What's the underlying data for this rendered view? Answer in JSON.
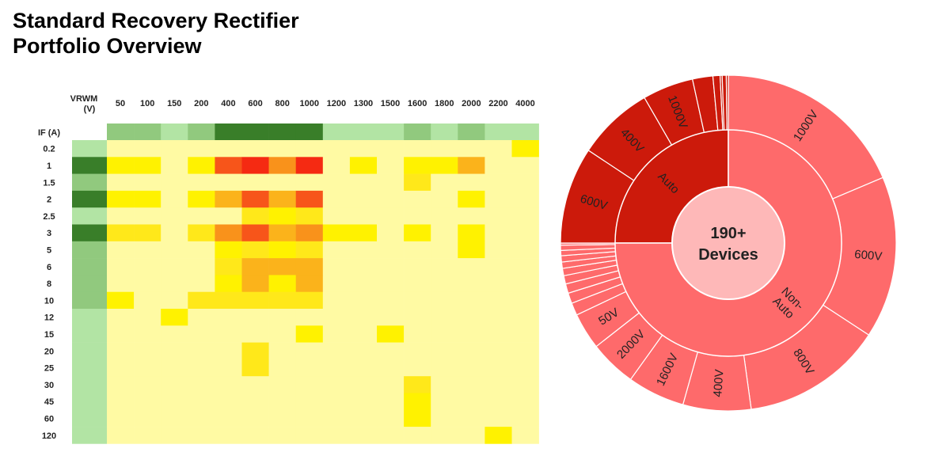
{
  "title": {
    "line1": "Standard Recovery Rectifier",
    "line2": "Portfolio Overview"
  },
  "chart_data": [
    {
      "type": "heatmap",
      "corner_label_line1": "VRWM",
      "corner_label_line2": "(V)",
      "row_header_label": "IF (A)",
      "count_column_label": "#",
      "columns": [
        "50",
        "100",
        "150",
        "200",
        "400",
        "600",
        "800",
        "1000",
        "1200",
        "1300",
        "1500",
        "1600",
        "1800",
        "2000",
        "2200",
        "4000"
      ],
      "rows": [
        "0.2",
        "1",
        "1.5",
        "2",
        "2.5",
        "3",
        "5",
        "6",
        "8",
        "10",
        "12",
        "15",
        "20",
        "25",
        "30",
        "45",
        "60",
        "120"
      ],
      "column_count_levels": [
        2,
        2,
        1,
        2,
        4,
        4,
        4,
        4,
        1,
        1,
        1,
        2,
        1,
        2,
        1,
        1
      ],
      "row_count_levels": [
        1,
        4,
        2,
        4,
        1,
        4,
        2,
        2,
        2,
        2,
        1,
        1,
        1,
        1,
        1,
        1,
        1,
        1
      ],
      "values": [
        [
          0,
          0,
          0,
          0,
          0,
          0,
          0,
          0,
          0,
          0,
          0,
          0,
          0,
          0,
          0,
          2
        ],
        [
          2,
          2,
          0,
          2,
          5,
          6,
          4,
          6,
          0,
          2,
          0,
          2,
          2,
          3,
          0,
          0
        ],
        [
          0,
          0,
          0,
          0,
          0,
          0,
          0,
          0,
          0,
          0,
          0,
          1,
          0,
          0,
          0,
          0
        ],
        [
          2,
          2,
          0,
          2,
          3,
          5,
          3,
          5,
          0,
          0,
          0,
          0,
          0,
          2,
          0,
          0
        ],
        [
          0,
          0,
          0,
          0,
          0,
          1,
          2,
          1,
          0,
          0,
          0,
          0,
          0,
          0,
          0,
          0
        ],
        [
          1,
          1,
          0,
          1,
          4,
          5,
          3,
          4,
          2,
          2,
          0,
          2,
          0,
          2,
          0,
          0
        ],
        [
          0,
          0,
          0,
          0,
          2,
          1,
          2,
          1,
          0,
          0,
          0,
          0,
          0,
          2,
          0,
          0
        ],
        [
          0,
          0,
          0,
          0,
          1,
          3,
          3,
          3,
          0,
          0,
          0,
          0,
          0,
          0,
          0,
          0
        ],
        [
          0,
          0,
          0,
          0,
          2,
          3,
          2,
          3,
          0,
          0,
          0,
          0,
          0,
          0,
          0,
          0
        ],
        [
          2,
          0,
          0,
          1,
          1,
          1,
          1,
          1,
          0,
          0,
          0,
          0,
          0,
          0,
          0,
          0
        ],
        [
          0,
          0,
          2,
          0,
          0,
          0,
          0,
          0,
          0,
          0,
          0,
          0,
          0,
          0,
          0,
          0
        ],
        [
          0,
          0,
          0,
          0,
          0,
          0,
          0,
          2,
          0,
          0,
          2,
          0,
          0,
          0,
          0,
          0
        ],
        [
          0,
          0,
          0,
          0,
          0,
          1,
          0,
          0,
          0,
          0,
          0,
          0,
          0,
          0,
          0,
          0
        ],
        [
          0,
          0,
          0,
          0,
          0,
          1,
          0,
          0,
          0,
          0,
          0,
          0,
          0,
          0,
          0,
          0
        ],
        [
          0,
          0,
          0,
          0,
          0,
          0,
          0,
          0,
          0,
          0,
          0,
          1,
          0,
          0,
          0,
          0
        ],
        [
          0,
          0,
          0,
          0,
          0,
          0,
          0,
          0,
          0,
          0,
          0,
          2,
          0,
          0,
          0,
          0
        ],
        [
          0,
          0,
          0,
          0,
          0,
          0,
          0,
          0,
          0,
          0,
          0,
          2,
          0,
          0,
          0,
          0
        ],
        [
          0,
          0,
          0,
          0,
          0,
          0,
          0,
          0,
          0,
          0,
          0,
          0,
          0,
          0,
          2,
          0
        ]
      ],
      "value_colors": [
        "#fffaa3",
        "#ffe81a",
        "#fff200",
        "#fbb31b",
        "#f9921b",
        "#f7551a",
        "#f52a12"
      ],
      "count_colors": [
        "#ffffff",
        "#b2e4a4",
        "#91c97e",
        "#6ab25a",
        "#397e29"
      ]
    },
    {
      "type": "pie",
      "subtype": "sunburst",
      "center_label_line1": "190+",
      "center_label_line2": "Devices",
      "colors": {
        "auto": "#cc1a0b",
        "non_auto": "#fe6a6b",
        "center": "#feb8b8",
        "border": "#ffffff"
      },
      "inner": [
        {
          "label": "Auto",
          "value": 25,
          "group": "auto"
        },
        {
          "label": "Non-Auto",
          "value": 75,
          "group": "non_auto"
        }
      ],
      "outer": [
        {
          "label": "1000V",
          "value": 18.5,
          "group": "non_auto"
        },
        {
          "label": "600V",
          "value": 15.5,
          "group": "non_auto"
        },
        {
          "label": "800V",
          "value": 13.5,
          "group": "non_auto"
        },
        {
          "label": "400V",
          "value": 6.5,
          "group": "non_auto"
        },
        {
          "label": "1600V",
          "value": 5.5,
          "group": "non_auto"
        },
        {
          "label": "2000V",
          "value": 4.5,
          "group": "non_auto"
        },
        {
          "label": "50V",
          "value": 3.5,
          "group": "non_auto"
        },
        {
          "label": "",
          "value": 1.2,
          "group": "non_auto"
        },
        {
          "label": "",
          "value": 1.0,
          "group": "non_auto"
        },
        {
          "label": "",
          "value": 0.9,
          "group": "non_auto"
        },
        {
          "label": "",
          "value": 0.8,
          "group": "non_auto"
        },
        {
          "label": "",
          "value": 0.7,
          "group": "non_auto"
        },
        {
          "label": "",
          "value": 0.6,
          "group": "non_auto"
        },
        {
          "label": "",
          "value": 0.6,
          "group": "non_auto"
        },
        {
          "label": "",
          "value": 0.5,
          "group": "non_auto"
        },
        {
          "label": "",
          "value": 0.5,
          "group": "non_auto"
        },
        {
          "label": "",
          "value": 0.2,
          "group": "non_auto"
        },
        {
          "label": "600V",
          "value": 9.5,
          "group": "auto"
        },
        {
          "label": "400V",
          "value": 7.5,
          "group": "auto"
        },
        {
          "label": "1000V",
          "value": 5.0,
          "group": "auto"
        },
        {
          "label": "",
          "value": 2.0,
          "group": "auto"
        },
        {
          "label": "",
          "value": 0.7,
          "group": "auto"
        },
        {
          "label": "",
          "value": 0.2,
          "group": "auto"
        },
        {
          "label": "",
          "value": 0.4,
          "group": "auto"
        },
        {
          "label": "",
          "value": 0.2,
          "group": "auto"
        }
      ]
    }
  ]
}
